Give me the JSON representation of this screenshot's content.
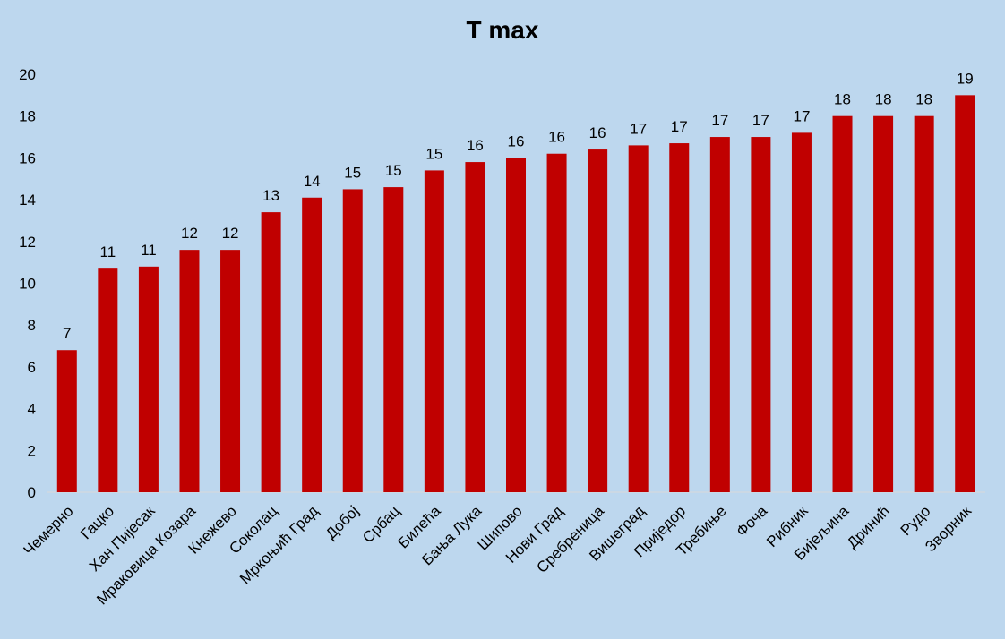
{
  "chart_data": {
    "type": "bar",
    "title": "T max",
    "xlabel": "",
    "ylabel": "",
    "ylim": [
      0,
      20
    ],
    "yticks": [
      0,
      2,
      4,
      6,
      8,
      10,
      12,
      14,
      16,
      18,
      20
    ],
    "bar_color": "#c00000",
    "categories": [
      "Чемерно",
      "Гацко",
      "Хан Пијесак",
      "Мраковица Козара",
      "Кнежево",
      "Соколац",
      "Мркоњић Град",
      "Добој",
      "Србац",
      "Билећа",
      "Бања Лука",
      "Шипово",
      "Нови Град",
      "Сребреница",
      "Вишеград",
      "Приједор",
      "Требиње",
      "Фоча",
      "Рибник",
      "Бијељина",
      "Дринић",
      "Рудо",
      "Зворник"
    ],
    "values": [
      6.8,
      10.7,
      10.8,
      11.6,
      11.6,
      13.4,
      14.1,
      14.5,
      14.6,
      15.4,
      15.8,
      16.0,
      16.2,
      16.4,
      16.6,
      16.7,
      17.0,
      17.0,
      17.2,
      18.0,
      18.0,
      18.0,
      19.0
    ],
    "data_labels": [
      "7",
      "11",
      "11",
      "12",
      "12",
      "13",
      "14",
      "15",
      "15",
      "15",
      "16",
      "16",
      "16",
      "16",
      "17",
      "17",
      "17",
      "17",
      "17",
      "18",
      "18",
      "18",
      "19"
    ]
  }
}
